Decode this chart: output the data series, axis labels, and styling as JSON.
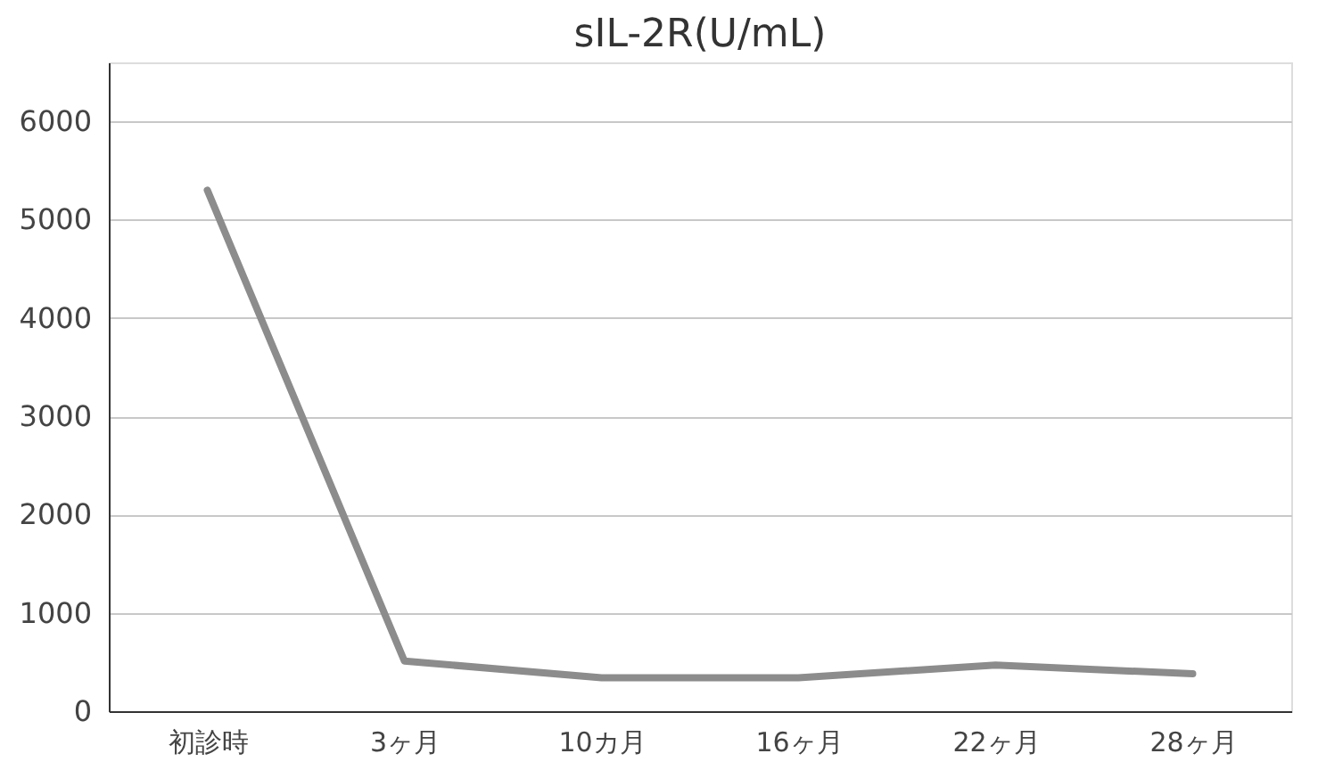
{
  "chart_data": {
    "type": "line",
    "title": "sIL-2R(U/mL)",
    "categories": [
      "初診時",
      "3ヶ月",
      "10カ月",
      "16ヶ月",
      "22ヶ月",
      "28ヶ月"
    ],
    "series": [
      {
        "color": "#8c8c8c",
        "values": [
          5300,
          510,
          340,
          340,
          470,
          380
        ]
      }
    ],
    "ylim": [
      0,
      6600
    ],
    "yticks": [
      0,
      1000,
      2000,
      3000,
      4000,
      5000,
      6000
    ],
    "grid": "y",
    "marker": "none",
    "line_style": "solid"
  }
}
